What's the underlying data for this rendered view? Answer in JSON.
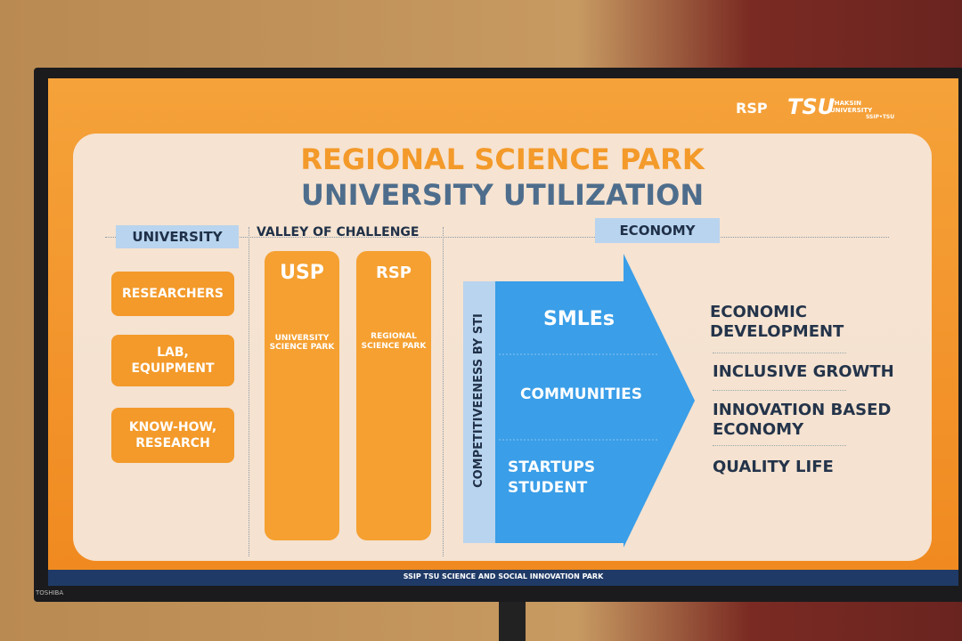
{
  "logos": {
    "rsp": "RSP",
    "tsu": "TSU",
    "thaksin": "THAKSIN UNIVERSITY",
    "ssip": "SSIP•TSU"
  },
  "title": {
    "line1": "REGIONAL SCIENCE PARK",
    "line2": "UNIVERSITY UTILIZATION"
  },
  "university": {
    "heading": "UNIVERSITY",
    "items": [
      "RESEARCHERS",
      "LAB, EQUIPMENT",
      "KNOW-HOW, RESEARCH"
    ]
  },
  "valley": {
    "heading": "VALLEY OF CHALLENGE",
    "pillars": [
      {
        "title": "USP",
        "subtitle": "UNIVERSITY SCIENCE PARK"
      },
      {
        "title": "RSP",
        "subtitle": "REGIONAL SCIENCE PARK"
      }
    ]
  },
  "economy": {
    "heading": "ECONOMY",
    "side_label": "COMPETITIVEENESS BY STI",
    "arrow_items": [
      "SMLEs",
      "COMMUNITIES",
      "STARTUPS STUDENT"
    ],
    "outcomes": [
      "ECONOMIC DEVELOPMENT",
      "INCLUSIVE GROWTH",
      "INNOVATION BASED ECONOMY",
      "QUALITY LIFE"
    ]
  },
  "footer": "SSIP TSU SCIENCE AND SOCIAL INNOVATION PARK",
  "brand": "TOSHIBA"
}
